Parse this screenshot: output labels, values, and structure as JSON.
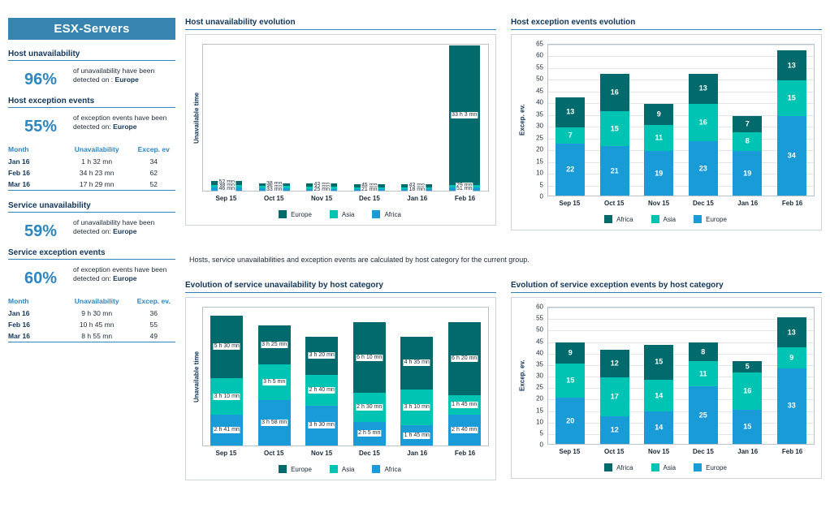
{
  "sidebar": {
    "title": "ESX-Servers",
    "sections": [
      {
        "heading": "Host unavailability",
        "percent": "96%",
        "desc": "of unavailability have been detected on :",
        "location": "Europe"
      },
      {
        "heading": "Host exception events",
        "percent": "55%",
        "desc": "of exception events have been detected on:",
        "location": "Europe"
      },
      {
        "heading": "Service unavailability",
        "percent": "59%",
        "desc": "of unavailability have been detected on:",
        "location": "Europe"
      },
      {
        "heading": "Service exception events",
        "percent": "60%",
        "desc": "of exception events have been detected on:",
        "location": "Europe"
      }
    ],
    "host_table": {
      "headers": [
        "Month",
        "Unavailability",
        "Excep. ev"
      ],
      "rows": [
        [
          "Jan 16",
          "1 h 32 mn",
          "34"
        ],
        [
          "Feb 16",
          "34 h 23 mn",
          "62"
        ],
        [
          "Mar 16",
          "17 h 29 mn",
          "52"
        ]
      ]
    },
    "service_table": {
      "headers": [
        "Month",
        "Unavailability",
        "Excep. ev."
      ],
      "rows": [
        [
          "Jan 16",
          "9 h 30 mn",
          "36"
        ],
        [
          "Feb 16",
          "10 h 45 mn",
          "55"
        ],
        [
          "Mar 16",
          "8 h 55 mn",
          "49"
        ]
      ]
    }
  },
  "note": "Hosts, service unavailabilities and exception events are calculated by host category for the current group.",
  "colors": {
    "dark_teal": "#006a6c",
    "turquoise": "#00c4b3",
    "light_blue": "#199bd7",
    "accent_blue": "#2e86c1",
    "navy": "#12365a",
    "sidebar_header": "#3784b0"
  },
  "chart_data": [
    {
      "type": "bar",
      "stacked": true,
      "title": "Host unavailability evolution",
      "ylabel": "Unavailable time",
      "xlabel": "",
      "categories": [
        "Sep 15",
        "Oct 15",
        "Nov 15",
        "Dec 15",
        "Jan 16",
        "Feb 16"
      ],
      "value_unit": "minutes",
      "ymax": 2100,
      "yticks": [],
      "grid": false,
      "legend_position": "bottom",
      "label_style": "boxed",
      "series": [
        {
          "name": "Europe",
          "color": "#006a6c",
          "values": [
            52,
            38,
            42,
            45,
            42,
            1983
          ],
          "labels": [
            "52 mn",
            "38 mn",
            "42 mn",
            "45 mn",
            "42 mn",
            "33 h 3 mn"
          ]
        },
        {
          "name": "Asia",
          "color": "#00c4b3",
          "values": [
            38,
            35,
            32,
            28,
            32,
            29
          ],
          "labels": [
            "38 mn",
            "35 mn",
            "32 mn",
            "28 mn",
            "32 mn",
            "29 mn"
          ]
        },
        {
          "name": "Africa",
          "color": "#199bd7",
          "values": [
            46,
            33,
            25,
            21,
            18,
            51
          ],
          "labels": [
            "46 mn",
            "33 mn",
            "25 mn",
            "21 mn",
            "18 mn",
            "51 mn"
          ]
        }
      ]
    },
    {
      "type": "bar",
      "stacked": true,
      "title": "Host exception events evolution",
      "ylabel": "Excep. ev.",
      "xlabel": "",
      "categories": [
        "Sep 15",
        "Oct 15",
        "Nov 15",
        "Dec 15",
        "Jan 16",
        "Feb 16"
      ],
      "value_unit": "events",
      "ymax": 65,
      "yticks": [
        0,
        5,
        10,
        15,
        20,
        25,
        30,
        35,
        40,
        45,
        50,
        55,
        60,
        65
      ],
      "grid": true,
      "legend_position": "bottom",
      "label_style": "inside",
      "series": [
        {
          "name": "Africa",
          "color": "#006a6c",
          "values": [
            13,
            16,
            9,
            13,
            7,
            13
          ]
        },
        {
          "name": "Asia",
          "color": "#00c4b3",
          "values": [
            7,
            15,
            11,
            16,
            8,
            15
          ]
        },
        {
          "name": "Europe",
          "color": "#199bd7",
          "values": [
            22,
            21,
            19,
            23,
            19,
            34
          ]
        }
      ]
    },
    {
      "type": "bar",
      "stacked": true,
      "title": "Evolution of service unavailability by host category",
      "ylabel": "Unavailable time",
      "xlabel": "",
      "categories": [
        "Sep 15",
        "Oct 15",
        "Nov 15",
        "Dec 15",
        "Jan 16",
        "Feb 16"
      ],
      "value_unit": "minutes",
      "ymax": 730,
      "yticks": [],
      "grid": false,
      "legend_position": "bottom",
      "label_style": "boxed",
      "series": [
        {
          "name": "Europe",
          "color": "#006a6c",
          "values": [
            330,
            205,
            200,
            370,
            275,
            380
          ],
          "labels": [
            "5 h 30 mn",
            "3 h 25 mn",
            "3 h 20 mn",
            "6 h 10 mn",
            "4 h 35 mn",
            "6 h 20 mn"
          ]
        },
        {
          "name": "Asia",
          "color": "#00c4b3",
          "values": [
            190,
            185,
            160,
            150,
            190,
            105
          ],
          "labels": [
            "3 h 10 mn",
            "3 h 5 mn",
            "2 h 40 mn",
            "2 h 30 mn",
            "3 h 10 mn",
            "1 h 45 mn"
          ]
        },
        {
          "name": "Africa",
          "color": "#199bd7",
          "values": [
            161,
            238,
            210,
            125,
            105,
            160
          ],
          "labels": [
            "2 h 41 mn",
            "3 h 58 mn",
            "3 h 30 mn",
            "2 h 5 mn",
            "1 h 45 mn",
            "2 h 40 mn"
          ]
        }
      ]
    },
    {
      "type": "bar",
      "stacked": true,
      "title": "Evolution of service exception events by host category",
      "ylabel": "Excep. ev.",
      "xlabel": "",
      "categories": [
        "Sep 15",
        "Oct 15",
        "Nov 15",
        "Dec 15",
        "Jan 16",
        "Feb 16"
      ],
      "value_unit": "events",
      "ymax": 60,
      "yticks": [
        0,
        5,
        10,
        15,
        20,
        25,
        30,
        35,
        40,
        45,
        50,
        55,
        60
      ],
      "grid": true,
      "legend_position": "bottom",
      "label_style": "inside",
      "series": [
        {
          "name": "Africa",
          "color": "#006a6c",
          "values": [
            9,
            12,
            15,
            8,
            5,
            13
          ]
        },
        {
          "name": "Asia",
          "color": "#00c4b3",
          "values": [
            15,
            17,
            14,
            11,
            16,
            9
          ]
        },
        {
          "name": "Europe",
          "color": "#199bd7",
          "values": [
            20,
            12,
            14,
            25,
            15,
            33
          ]
        }
      ]
    }
  ]
}
